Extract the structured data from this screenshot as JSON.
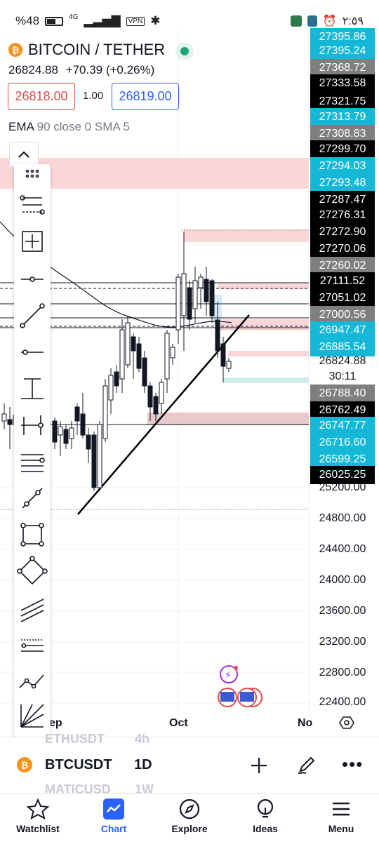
{
  "status_bar": {
    "battery": "%48",
    "network": "4G",
    "vpn": "VPN",
    "time": "٢:٥٩"
  },
  "header": {
    "symbol_title": "BITCOIN / TETHER",
    "coin_glyph": "₿",
    "last_price": "26824.88",
    "change": "+70.39 (+0.26%)",
    "sell_price": "26818.00",
    "spread": "1.00",
    "buy_price": "26819.00",
    "indicators_main": "EMA",
    "indicators_rest": "90 close 0 SMA 5"
  },
  "price_axis": {
    "labels": [
      {
        "text": "27395.86",
        "style": "cyan"
      },
      {
        "text": "27395.24",
        "style": "cyan"
      },
      {
        "text": "27368.72",
        "style": "gray"
      },
      {
        "text": "27333.58",
        "style": "black"
      },
      {
        "text": "27321.75",
        "style": "black"
      },
      {
        "text": "27313.79",
        "style": "cyan"
      },
      {
        "text": "27308.83",
        "style": "gray"
      },
      {
        "text": "27299.70",
        "style": "black"
      },
      {
        "text": "27294.03",
        "style": "cyan"
      },
      {
        "text": "27293.48",
        "style": "cyan"
      },
      {
        "text": "27287.47",
        "style": "black"
      },
      {
        "text": "27276.31",
        "style": "black"
      },
      {
        "text": "27272.90",
        "style": "black"
      },
      {
        "text": "27270.06",
        "style": "black"
      },
      {
        "text": "27260.02",
        "style": "gray"
      },
      {
        "text": "27111.52",
        "style": "black"
      },
      {
        "text": "27051.02",
        "style": "black"
      },
      {
        "text": "27000.56",
        "style": "gray"
      },
      {
        "text": "26947.47",
        "style": "cyan"
      },
      {
        "text": "26885.54",
        "style": "cyan"
      },
      {
        "text": "26824.88",
        "style": "plain"
      },
      {
        "text": "30:11",
        "style": "plain"
      },
      {
        "text": "26788.40",
        "style": "gray"
      },
      {
        "text": "26762.49",
        "style": "black"
      },
      {
        "text": "26747.77",
        "style": "cyan"
      },
      {
        "text": "26716.60",
        "style": "cyan"
      },
      {
        "text": "26599.25",
        "style": "cyan"
      },
      {
        "text": "26025.25",
        "style": "black"
      },
      {
        "text": "25200.00",
        "style": "plain"
      },
      {
        "text": "24800.00",
        "style": "plain"
      },
      {
        "text": "24400.00",
        "style": "plain"
      },
      {
        "text": "24000.00",
        "style": "plain"
      },
      {
        "text": "23600.00",
        "style": "plain"
      },
      {
        "text": "23200.00",
        "style": "plain"
      },
      {
        "text": "22800.00",
        "style": "plain"
      },
      {
        "text": "22400.00",
        "style": "plain"
      }
    ]
  },
  "time_axis": {
    "labels": [
      "ep",
      "Oct",
      "No"
    ]
  },
  "toolbar": {
    "tools": [
      "grip-icon",
      "fib-retracement-icon",
      "crosshair-box-icon",
      "horizontal-ray-icon",
      "trend-line-icon",
      "horizontal-line-icon",
      "vertical-line-icon",
      "cross-line-icon",
      "parallel-lines-icon",
      "ray-icon",
      "rectangle-icon",
      "rotated-rectangle-icon",
      "channel-icon",
      "pitchfork-icon",
      "polyline-icon",
      "fib-fan-icon"
    ]
  },
  "symbol_bar": {
    "ghost_top": "ETHUSDT",
    "ghost_top_tf": "4h",
    "symbol": "BTCUSDT",
    "timeframe": "1D",
    "ghost_bottom": "MATICUSD",
    "ghost_bottom_tf": "1W"
  },
  "tabs": [
    {
      "label": "Watchlist",
      "icon": "star-icon",
      "active": false
    },
    {
      "label": "Chart",
      "icon": "chart-icon",
      "active": true
    },
    {
      "label": "Explore",
      "icon": "compass-icon",
      "active": false
    },
    {
      "label": "Ideas",
      "icon": "lightbulb-icon",
      "active": false
    },
    {
      "label": "Menu",
      "icon": "hamburger-icon",
      "active": false
    }
  ],
  "colors": {
    "accent": "#2962ff",
    "sell": "#e04a4a",
    "live": "#17a57a",
    "label_cyan": "#14b8d6"
  }
}
